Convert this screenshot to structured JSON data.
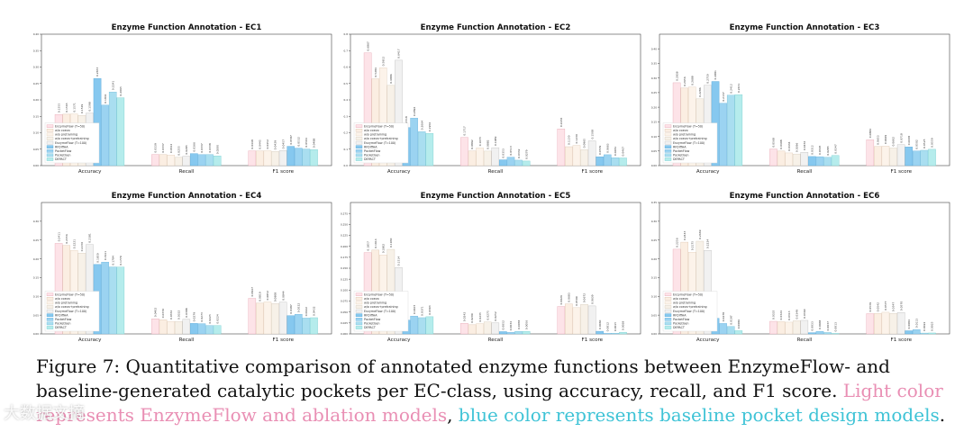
{
  "caption": {
    "main": "Figure 7:  Quantitative comparison of annotated enzyme functions between EnzymeFlow- and baseline-generated catalytic pockets per EC-class, using accuracy, recall, and F1 score.",
    "pink_part": "Light color represents EnzymeFlow and ablation models",
    "comma": ",",
    "blue_part": "blue color represents baseline pocket design models",
    "end": "."
  },
  "watermark": "大数据文摘",
  "legend_series": [
    {
      "name": "EnzymeFlow (T=50)",
      "color": "#fde3e8",
      "edge": "#e8a8b5"
    },
    {
      "name": "w/o coevo",
      "color": "#fbeee2",
      "edge": "#dcc4ae"
    },
    {
      "name": "w/o pretraining",
      "color": "#fcf3ea",
      "edge": "#e1cdb9"
    },
    {
      "name": "w/o coevo+pretraining",
      "color": "#f7f1e8",
      "edge": "#d6cbbb"
    },
    {
      "name": "EnzymeFlow (T=100)",
      "color": "#f1f1f1",
      "edge": "#bdbdbd"
    },
    {
      "name": "RFDiffAA",
      "color": "#86c8ef",
      "edge": "#5aa9d8"
    },
    {
      "name": "PocketFlow",
      "color": "#9bd3f1",
      "edge": "#6cb4de"
    },
    {
      "name": "PocketGen",
      "color": "#a9def0",
      "edge": "#76bfd9"
    },
    {
      "name": "DEPACT",
      "color": "#b5ecec",
      "edge": "#7ccfd0"
    }
  ],
  "chart_data": [
    {
      "type": "bar",
      "title": "Enzyme Function Annotation - EC1",
      "categories": [
        "Accuracy",
        "Recall",
        "F1 score"
      ],
      "ylim": [
        0,
        0.4
      ],
      "yticks": [
        "0.00",
        "0.05",
        "0.10",
        "0.15",
        "0.20",
        "0.25",
        "0.30",
        "0.35",
        "0.40"
      ],
      "legend_position": "lower-left",
      "series": [
        {
          "name": "EnzymeFlow (T=50)",
          "values": [
            0.1555,
            0.0339,
            0.0448
          ]
        },
        {
          "name": "w/o coevo",
          "values": [
            0.1565,
            0.0337,
            0.0445
          ]
        },
        {
          "name": "w/o pretraining",
          "values": [
            0.1571,
            0.0322,
            0.0452
          ]
        },
        {
          "name": "w/o coevo+pretraining",
          "values": [
            0.1529,
            0.0255,
            0.0429
          ]
        },
        {
          "name": "EnzymeFlow (T=100)",
          "values": [
            0.1598,
            0.0285,
            0.0457
          ]
        },
        {
          "name": "RFDiffAA",
          "values": [
            0.2653,
            0.0366,
            0.0587
          ]
        },
        {
          "name": "PocketFlow",
          "values": [
            0.1841,
            0.0337,
            0.0532
          ]
        },
        {
          "name": "PocketGen",
          "values": [
            0.2241,
            0.0338,
            0.0504
          ]
        },
        {
          "name": "DEPACT",
          "values": [
            0.2065,
            0.0295,
            0.0488
          ]
        }
      ]
    },
    {
      "type": "bar",
      "title": "Enzyme Function Annotation - EC2",
      "categories": [
        "Accuracy",
        "Recall",
        "F1 score"
      ],
      "ylim": [
        0,
        0.8
      ],
      "yticks": [
        "0.0",
        "0.1",
        "0.2",
        "0.3",
        "0.4",
        "0.5",
        "0.6",
        "0.7",
        "0.8"
      ],
      "legend_position": "lower-left",
      "series": [
        {
          "name": "EnzymeFlow (T=50)",
          "values": [
            0.6867,
            0.1717,
            0.2236
          ]
        },
        {
          "name": "w/o coevo",
          "values": [
            0.5284,
            0.0892,
            0.115
          ]
        },
        {
          "name": "w/o pretraining",
          "values": [
            0.5952,
            0.1075,
            0.123
          ]
        },
        {
          "name": "w/o coevo+pretraining",
          "values": [
            0.4886,
            0.0882,
            0.0965
          ]
        },
        {
          "name": "EnzymeFlow (T=100)",
          "values": [
            0.6417,
            0.1089,
            0.1508
          ]
        },
        {
          "name": "RFDiffAA",
          "values": [
            0.2318,
            0.0353,
            0.0539
          ]
        },
        {
          "name": "PocketFlow",
          "values": [
            0.2894,
            0.0513,
            0.0663
          ]
        },
        {
          "name": "PocketGen",
          "values": [
            0.2064,
            0.0332,
            0.0481
          ]
        },
        {
          "name": "DEPACT",
          "values": [
            0.1956,
            0.0279,
            0.0467
          ]
        }
      ]
    },
    {
      "type": "bar",
      "title": "Enzyme Function Annotation - EC3",
      "categories": [
        "Accuracy",
        "Recall",
        "F1 score"
      ],
      "ylim": [
        0,
        0.45
      ],
      "yticks": [
        "0.00",
        "0.05",
        "0.10",
        "0.15",
        "0.20",
        "0.25",
        "0.30",
        "0.35",
        "0.40"
      ],
      "legend_position": "lower-left",
      "series": [
        {
          "name": "EnzymeFlow (T=50)",
          "values": [
            0.2838,
            0.0568,
            0.0884
          ]
        },
        {
          "name": "w/o coevo",
          "values": [
            0.2656,
            0.0498,
            0.0653
          ]
        },
        {
          "name": "w/o pretraining",
          "values": [
            0.2688,
            0.0434,
            0.0669
          ]
        },
        {
          "name": "w/o coevo+pretraining",
          "values": [
            0.2286,
            0.0396,
            0.0602
          ]
        },
        {
          "name": "EnzymeFlow (T=100)",
          "values": [
            0.275,
            0.0456,
            0.0718
          ]
        },
        {
          "name": "RFDiffAA",
          "values": [
            0.2881,
            0.0312,
            0.0638
          ]
        },
        {
          "name": "PocketFlow",
          "values": [
            0.2137,
            0.0305,
            0.0502
          ]
        },
        {
          "name": "PocketGen",
          "values": [
            0.2412,
            0.0285,
            0.0525
          ]
        },
        {
          "name": "DEPACT",
          "values": [
            0.2431,
            0.0347,
            0.0559
          ]
        }
      ]
    },
    {
      "type": "bar",
      "title": "Enzyme Function Annotation - EC4",
      "categories": [
        "Accuracy",
        "Recall",
        "F1 score"
      ],
      "ylim": [
        0,
        0.35
      ],
      "yticks": [
        "0.00",
        "0.05",
        "0.10",
        "0.15",
        "0.20",
        "0.25",
        "0.30"
      ],
      "legend_position": "lower-left",
      "series": [
        {
          "name": "EnzymeFlow (T=50)",
          "values": [
            0.2411,
            0.0402,
            0.0947
          ]
        },
        {
          "name": "w/o coevo",
          "values": [
            0.2356,
            0.0376,
            0.0819
          ]
        },
        {
          "name": "w/o pretraining",
          "values": [
            0.2221,
            0.0332,
            0.0852
          ]
        },
        {
          "name": "w/o coevo+pretraining",
          "values": [
            0.215,
            0.0332,
            0.0808
          ]
        },
        {
          "name": "EnzymeFlow (T=100)",
          "values": [
            0.2381,
            0.0388,
            0.0844
          ]
        },
        {
          "name": "RFDiffAA",
          "values": [
            0.185,
            0.0279,
            0.0487
          ]
        },
        {
          "name": "PocketFlow",
          "values": [
            0.1911,
            0.0273,
            0.0522
          ]
        },
        {
          "name": "PocketGen",
          "values": [
            0.1784,
            0.0225,
            0.0422
          ]
        },
        {
          "name": "DEPACT",
          "values": [
            0.1779,
            0.0224,
            0.0432
          ]
        }
      ]
    },
    {
      "type": "bar",
      "title": "Enzyme Function Annotation - EC5",
      "categories": [
        "Accuracy",
        "Recall",
        "F1 score"
      ],
      "ylim": [
        0,
        0.3
      ],
      "yticks": [
        "0.000",
        "0.025",
        "0.050",
        "0.075",
        "0.100",
        "0.125",
        "0.150",
        "0.175",
        "0.200",
        "0.225",
        "0.250",
        "0.275"
      ],
      "legend_position": "lower-left",
      "series": [
        {
          "name": "EnzymeFlow (T=50)",
          "values": [
            0.1857,
            0.0242,
            0.0626
          ]
        },
        {
          "name": "w/o coevo",
          "values": [
            0.1914,
            0.0209,
            0.0683
          ]
        },
        {
          "name": "w/o pretraining",
          "values": [
            0.1802,
            0.0235,
            0.0599
          ]
        },
        {
          "name": "w/o coevo+pretraining",
          "values": [
            0.193,
            0.0275,
            0.0672
          ]
        },
        {
          "name": "EnzymeFlow (T=100)",
          "values": [
            0.1514,
            0.0252,
            0.0639
          ]
        },
        {
          "name": "RFDiffAA",
          "values": [
            0.0314,
            0.0052,
            0.006
          ]
        },
        {
          "name": "PocketFlow",
          "values": [
            0.0407,
            0.0034,
            0.0012
          ]
        },
        {
          "name": "PocketGen",
          "values": [
            0.0371,
            0.0058,
            0.0015
          ]
        },
        {
          "name": "DEPACT",
          "values": [
            0.0393,
            0.0056,
            0.0038
          ]
        }
      ]
    },
    {
      "type": "bar",
      "title": "Enzyme Function Annotation - EC6",
      "categories": [
        "Accuracy",
        "Recall",
        "F1 score"
      ],
      "ylim": [
        0,
        0.35
      ],
      "yticks": [
        "0.00",
        "0.05",
        "0.10",
        "0.15",
        "0.20",
        "0.25",
        "0.30",
        "0.35"
      ],
      "legend_position": "lower-left",
      "series": [
        {
          "name": "EnzymeFlow (T=50)",
          "values": [
            0.2256,
            0.0335,
            0.0539
          ]
        },
        {
          "name": "w/o coevo",
          "values": [
            0.2443,
            0.0324,
            0.0542
          ]
        },
        {
          "name": "w/o pretraining",
          "values": [
            0.2175,
            0.0313,
            0.0577
          ]
        },
        {
          "name": "w/o coevo+pretraining",
          "values": [
            0.2469,
            0.0349,
            0.0547
          ]
        },
        {
          "name": "EnzymeFlow (T=100)",
          "values": [
            0.2224,
            0.036,
            0.057
          ]
        },
        {
          "name": "RFDiffAA",
          "values": [
            0.0416,
            0.0033,
            0.0084
          ]
        },
        {
          "name": "PocketFlow",
          "values": [
            0.0278,
            0.0068,
            0.0113
          ]
        },
        {
          "name": "PocketGen",
          "values": [
            0.0197,
            0.0037,
            0.0022
          ]
        },
        {
          "name": "DEPACT",
          "values": [
            0.0086,
            0.0013,
            0.0025
          ]
        }
      ]
    }
  ]
}
